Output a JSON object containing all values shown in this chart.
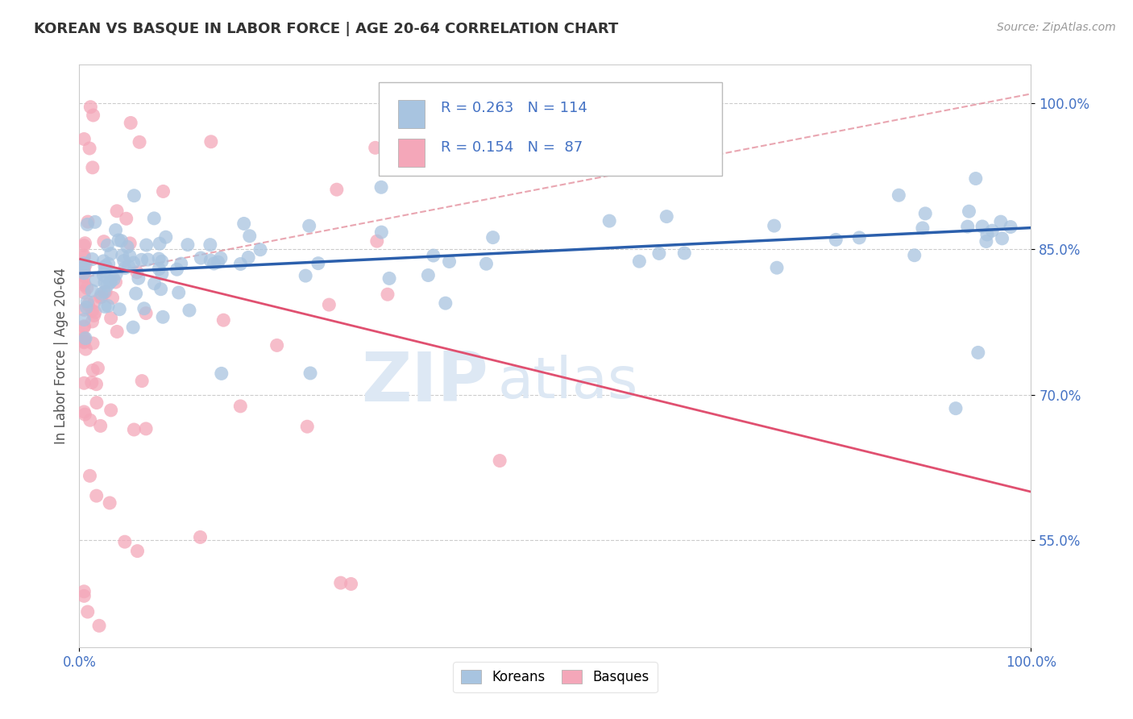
{
  "title": "KOREAN VS BASQUE IN LABOR FORCE | AGE 20-64 CORRELATION CHART",
  "source_text": "Source: ZipAtlas.com",
  "ylabel": "In Labor Force | Age 20-64",
  "xlim": [
    0.0,
    1.0
  ],
  "ylim": [
    0.44,
    1.04
  ],
  "x_ticks": [
    0.0,
    1.0
  ],
  "x_tick_labels": [
    "0.0%",
    "100.0%"
  ],
  "y_tick_labels": [
    "55.0%",
    "70.0%",
    "85.0%",
    "100.0%"
  ],
  "y_ticks": [
    0.55,
    0.7,
    0.85,
    1.0
  ],
  "korean_R": 0.263,
  "korean_N": 114,
  "basque_R": 0.154,
  "basque_N": 87,
  "korean_color": "#a8c4e0",
  "basque_color": "#f4a7b9",
  "korean_line_color": "#2b5fac",
  "basque_line_color": "#e05070",
  "dashed_line_color": "#e08090",
  "tick_color": "#4472c4",
  "watermark_zip": "ZIP",
  "watermark_atlas": "atlas",
  "legend_labels": [
    "Koreans",
    "Basques"
  ],
  "korean_line_endpoints": [
    0.0,
    1.0,
    0.825,
    0.872
  ],
  "basque_line_endpoints": [
    0.0,
    1.0,
    0.84,
    0.6
  ],
  "dashed_line_endpoints": [
    0.0,
    1.0,
    0.82,
    1.01
  ]
}
